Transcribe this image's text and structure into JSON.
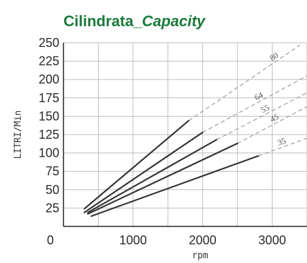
{
  "chart_data": {
    "type": "line",
    "title_main": "Cilindrata_",
    "title_italic": "Capacity",
    "xlabel": "rpm",
    "ylabel": "LITRI/Min",
    "xlim": [
      0,
      3500
    ],
    "ylim": [
      0,
      250
    ],
    "x_ticks": [
      "0",
      "1000",
      "2000",
      "3000"
    ],
    "y_ticks": [
      "25",
      "50",
      "75",
      "100",
      "125",
      "150",
      "175",
      "200",
      "225",
      "250"
    ],
    "grid": true,
    "series": [
      {
        "name": "80",
        "solid": [
          [
            300,
            24
          ],
          [
            1800,
            144
          ]
        ],
        "dashed": [
          [
            1800,
            144
          ],
          [
            3400,
            247
          ]
        ]
      },
      {
        "name": "64",
        "solid": [
          [
            300,
            19
          ],
          [
            2000,
            128
          ]
        ],
        "dashed": [
          [
            2000,
            128
          ],
          [
            3500,
            205
          ]
        ]
      },
      {
        "name": "55",
        "solid": [
          [
            350,
            19
          ],
          [
            2200,
            118
          ]
        ],
        "dashed": [
          [
            2200,
            118
          ],
          [
            3500,
            182
          ]
        ]
      },
      {
        "name": "45",
        "solid": [
          [
            350,
            17
          ],
          [
            2500,
            113
          ]
        ],
        "dashed": [
          [
            2500,
            113
          ],
          [
            3500,
            163
          ]
        ]
      },
      {
        "name": "35",
        "solid": [
          [
            400,
            14
          ],
          [
            2800,
            96
          ]
        ],
        "dashed": [
          [
            2800,
            96
          ],
          [
            3500,
            120
          ]
        ]
      }
    ],
    "colors": {
      "title": "#1a7a3a",
      "line": "#333333",
      "dashed": "#9a9a9a",
      "grid": "#bdbdbd",
      "axis": "#222222"
    }
  }
}
